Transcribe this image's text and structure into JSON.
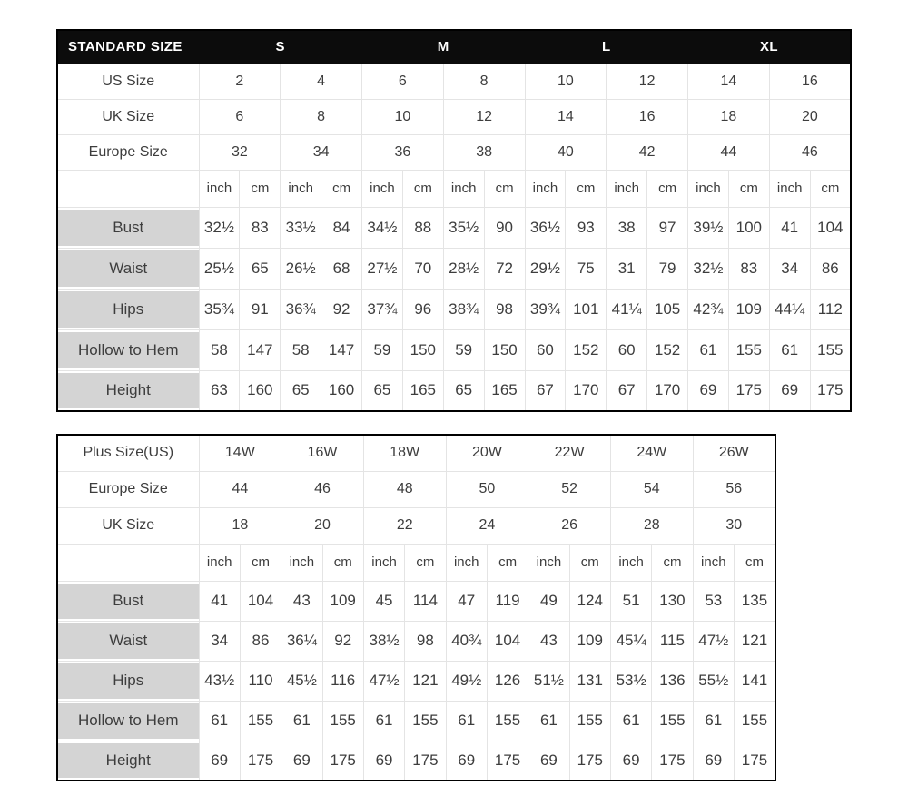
{
  "chart_data": [
    {
      "type": "table",
      "name": "standard-size-table",
      "title": "STANDARD SIZE",
      "size_groups": [
        "S",
        "M",
        "L",
        "XL"
      ],
      "size_rows": [
        {
          "label": "US Size",
          "values": [
            "2",
            "4",
            "6",
            "8",
            "10",
            "12",
            "14",
            "16"
          ]
        },
        {
          "label": "UK Size",
          "values": [
            "6",
            "8",
            "10",
            "12",
            "14",
            "16",
            "18",
            "20"
          ]
        },
        {
          "label": "Europe Size",
          "values": [
            "32",
            "34",
            "36",
            "38",
            "40",
            "42",
            "44",
            "46"
          ]
        }
      ],
      "unit_labels": [
        "inch",
        "cm"
      ],
      "measure_rows": [
        {
          "label": "Bust",
          "values": [
            "32½",
            "83",
            "33½",
            "84",
            "34½",
            "88",
            "35½",
            "90",
            "36½",
            "93",
            "38",
            "97",
            "39½",
            "100",
            "41",
            "104"
          ]
        },
        {
          "label": "Waist",
          "values": [
            "25½",
            "65",
            "26½",
            "68",
            "27½",
            "70",
            "28½",
            "72",
            "29½",
            "75",
            "31",
            "79",
            "32½",
            "83",
            "34",
            "86"
          ]
        },
        {
          "label": "Hips",
          "values": [
            "35¾",
            "91",
            "36¾",
            "92",
            "37¾",
            "96",
            "38¾",
            "98",
            "39¾",
            "101",
            "41¼",
            "105",
            "42¾",
            "109",
            "44¼",
            "112"
          ]
        },
        {
          "label": "Hollow to Hem",
          "values": [
            "58",
            "147",
            "58",
            "147",
            "59",
            "150",
            "59",
            "150",
            "60",
            "152",
            "60",
            "152",
            "61",
            "155",
            "61",
            "155"
          ]
        },
        {
          "label": "Height",
          "values": [
            "63",
            "160",
            "65",
            "160",
            "65",
            "165",
            "65",
            "165",
            "67",
            "170",
            "67",
            "170",
            "69",
            "175",
            "69",
            "175"
          ]
        }
      ]
    },
    {
      "type": "table",
      "name": "plus-size-table",
      "title": null,
      "size_groups": [],
      "size_rows": [
        {
          "label": "Plus Size(US)",
          "values": [
            "14W",
            "16W",
            "18W",
            "20W",
            "22W",
            "24W",
            "26W"
          ]
        },
        {
          "label": "Europe Size",
          "values": [
            "44",
            "46",
            "48",
            "50",
            "52",
            "54",
            "56"
          ]
        },
        {
          "label": "UK Size",
          "values": [
            "18",
            "20",
            "22",
            "24",
            "26",
            "28",
            "30"
          ]
        }
      ],
      "unit_labels": [
        "inch",
        "cm"
      ],
      "measure_rows": [
        {
          "label": "Bust",
          "values": [
            "41",
            "104",
            "43",
            "109",
            "45",
            "114",
            "47",
            "119",
            "49",
            "124",
            "51",
            "130",
            "53",
            "135"
          ]
        },
        {
          "label": "Waist",
          "values": [
            "34",
            "86",
            "36¼",
            "92",
            "38½",
            "98",
            "40¾",
            "104",
            "43",
            "109",
            "45¼",
            "115",
            "47½",
            "121"
          ]
        },
        {
          "label": "Hips",
          "values": [
            "43½",
            "110",
            "45½",
            "116",
            "47½",
            "121",
            "49½",
            "126",
            "51½",
            "131",
            "53½",
            "136",
            "55½",
            "141"
          ]
        },
        {
          "label": "Hollow to Hem",
          "values": [
            "61",
            "155",
            "61",
            "155",
            "61",
            "155",
            "61",
            "155",
            "61",
            "155",
            "61",
            "155",
            "61",
            "155"
          ]
        },
        {
          "label": "Height",
          "values": [
            "69",
            "175",
            "69",
            "175",
            "69",
            "175",
            "69",
            "175",
            "69",
            "175",
            "69",
            "175",
            "69",
            "175"
          ]
        }
      ]
    }
  ],
  "colors": {
    "header_bg": "#0c0c0c",
    "header_text": "#ffffff",
    "label_cell_bg": "#d4d4d4",
    "grid_line": "#e4e4e4",
    "border": "#000000",
    "text": "#3d3d3d"
  }
}
